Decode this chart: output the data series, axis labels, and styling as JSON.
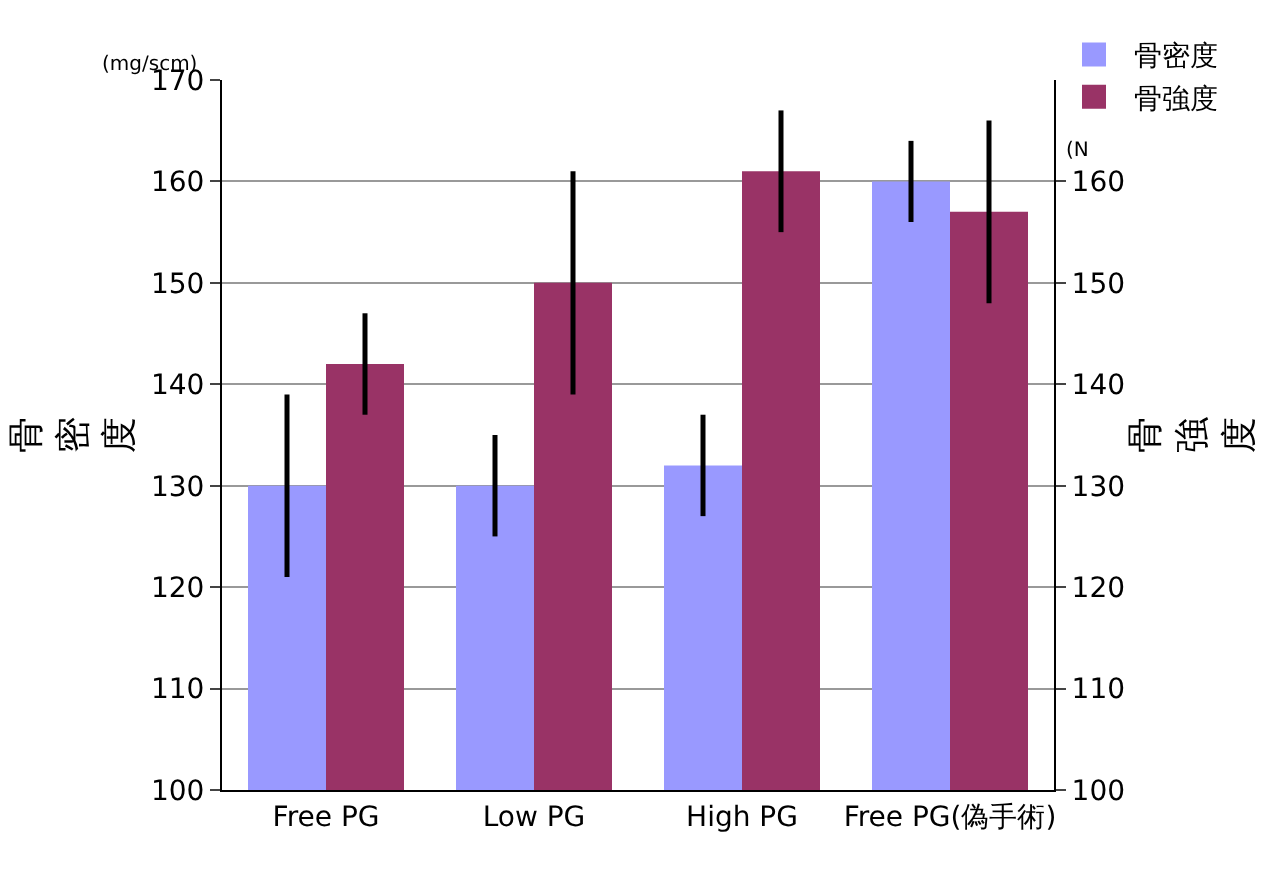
{
  "chart_data": {
    "type": "bar",
    "categories": [
      "Free PG",
      "Low PG",
      "High PG",
      "Free PG(偽手術)"
    ],
    "series": [
      {
        "name": "骨密度",
        "color": "#9999ff",
        "values": [
          130,
          130,
          132,
          160
        ],
        "errors": [
          9,
          5,
          5,
          4
        ]
      },
      {
        "name": "骨強度",
        "color": "#993366",
        "axis": "y2",
        "values": [
          142,
          150,
          161,
          157
        ],
        "errors": [
          5,
          11,
          6,
          9
        ]
      }
    ],
    "ylabel": "骨密度",
    "y2label": "骨強度",
    "annotations": [
      "(mg/scm)",
      "(N"
    ],
    "ylim": [
      100,
      170
    ],
    "yticks": [
      100,
      110,
      120,
      130,
      140,
      150,
      160,
      170
    ],
    "y2lim": [
      100,
      170
    ],
    "y2ticks": [
      100,
      110,
      120,
      130,
      140,
      150,
      160
    ],
    "grid": "y",
    "legend": "top right"
  }
}
